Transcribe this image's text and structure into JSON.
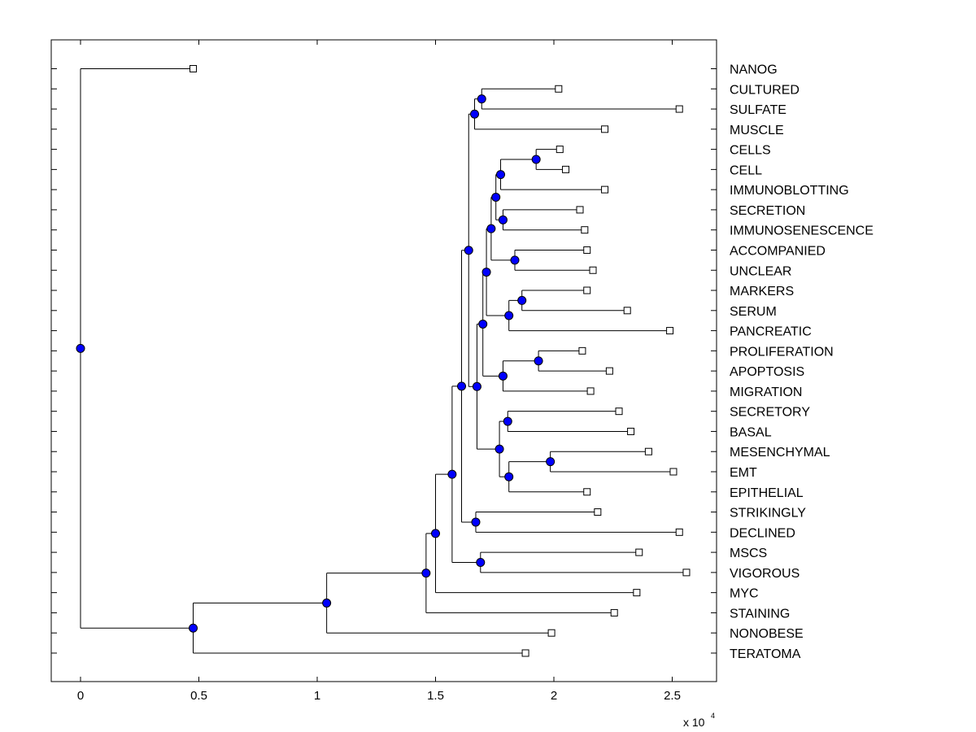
{
  "chart_data": {
    "type": "dendrogram",
    "orientation": "horizontal",
    "x_scale_label": "x 10",
    "x_scale_exponent": "4",
    "x_multiplier": 10000,
    "xlim": [
      -0.125,
      2.7
    ],
    "x_ticks": [
      0,
      0.5,
      1,
      1.5,
      2,
      2.5
    ],
    "x_tick_labels": [
      "0",
      "0.5",
      "1",
      "1.5",
      "2",
      "2.5"
    ],
    "leaf_labels": [
      "NANOG",
      "CULTURED",
      "SULFATE",
      "MUSCLE",
      "CELLS",
      "CELL",
      "IMMUNOBLOTTING",
      "SECRETION",
      "IMMUNOSENESCENCE",
      "ACCOMPANIED",
      "UNCLEAR",
      "MARKERS",
      "SERUM",
      "PANCREATIC",
      "PROLIFERATION",
      "APOPTOSIS",
      "MIGRATION",
      "SECRETORY",
      "BASAL",
      "MESENCHYMAL",
      "EMT",
      "EPITHELIAL",
      "STRIKINGLY",
      "DECLINED",
      "MSCS",
      "VIGOROUS",
      "MYC",
      "STAINING",
      "NONOBESE",
      "TERATOMA"
    ],
    "leaf_values": [
      0.476,
      2.02,
      2.53,
      2.215,
      2.025,
      2.05,
      2.215,
      2.11,
      2.13,
      2.14,
      2.165,
      2.14,
      2.31,
      2.49,
      2.12,
      2.235,
      2.155,
      2.275,
      2.325,
      2.4,
      2.505,
      2.14,
      2.185,
      2.53,
      2.36,
      2.56,
      2.35,
      2.255,
      1.99,
      1.88
    ],
    "internal_nodes": [
      {
        "id": "A",
        "value": 1.925,
        "children": [
          "L4",
          "L5"
        ]
      },
      {
        "id": "B",
        "value": 1.775,
        "children": [
          "A",
          "L6"
        ]
      },
      {
        "id": "C",
        "value": 1.785,
        "children": [
          "L7",
          "L8"
        ]
      },
      {
        "id": "D",
        "value": 1.755,
        "children": [
          "B",
          "C"
        ]
      },
      {
        "id": "E",
        "value": 1.835,
        "children": [
          "L9",
          "L10"
        ]
      },
      {
        "id": "F",
        "value": 1.735,
        "children": [
          "D",
          "E"
        ]
      },
      {
        "id": "G",
        "value": 1.865,
        "children": [
          "L11",
          "L12"
        ]
      },
      {
        "id": "H",
        "value": 1.81,
        "children": [
          "G",
          "L13"
        ]
      },
      {
        "id": "I",
        "value": 1.715,
        "children": [
          "F",
          "H"
        ]
      },
      {
        "id": "J",
        "value": 1.935,
        "children": [
          "L14",
          "L15"
        ]
      },
      {
        "id": "K",
        "value": 1.785,
        "children": [
          "J",
          "L16"
        ]
      },
      {
        "id": "L",
        "value": 1.7,
        "children": [
          "I",
          "K"
        ]
      },
      {
        "id": "M",
        "value": 1.805,
        "children": [
          "L17",
          "L18"
        ]
      },
      {
        "id": "N",
        "value": 1.985,
        "children": [
          "L19",
          "L20"
        ]
      },
      {
        "id": "O",
        "value": 1.81,
        "children": [
          "N",
          "L21"
        ]
      },
      {
        "id": "P",
        "value": 1.77,
        "children": [
          "M",
          "O"
        ]
      },
      {
        "id": "Q",
        "value": 1.675,
        "children": [
          "L",
          "P"
        ]
      },
      {
        "id": "R",
        "value": 1.695,
        "children": [
          "L1",
          "L2"
        ]
      },
      {
        "id": "S",
        "value": 1.665,
        "children": [
          "R",
          "L3"
        ]
      },
      {
        "id": "T",
        "value": 1.64,
        "children": [
          "S",
          "Q"
        ]
      },
      {
        "id": "U",
        "value": 1.67,
        "children": [
          "L22",
          "L23"
        ]
      },
      {
        "id": "V",
        "value": 1.61,
        "children": [
          "T",
          "U"
        ]
      },
      {
        "id": "W",
        "value": 1.69,
        "children": [
          "L24",
          "L25"
        ]
      },
      {
        "id": "X",
        "value": 1.57,
        "children": [
          "V",
          "W"
        ]
      },
      {
        "id": "Y",
        "value": 1.5,
        "children": [
          "X",
          "L26"
        ]
      },
      {
        "id": "Z",
        "value": 1.46,
        "children": [
          "Y",
          "L27"
        ]
      },
      {
        "id": "AA",
        "value": 1.04,
        "children": [
          "Z",
          "L28"
        ]
      },
      {
        "id": "AB",
        "value": 0.476,
        "children": [
          "AA",
          "L29"
        ]
      },
      {
        "id": "ROOT",
        "value": 0,
        "children": [
          "L0",
          "AB"
        ]
      }
    ],
    "node_color": "#0000ff",
    "line_color": "#000000"
  }
}
